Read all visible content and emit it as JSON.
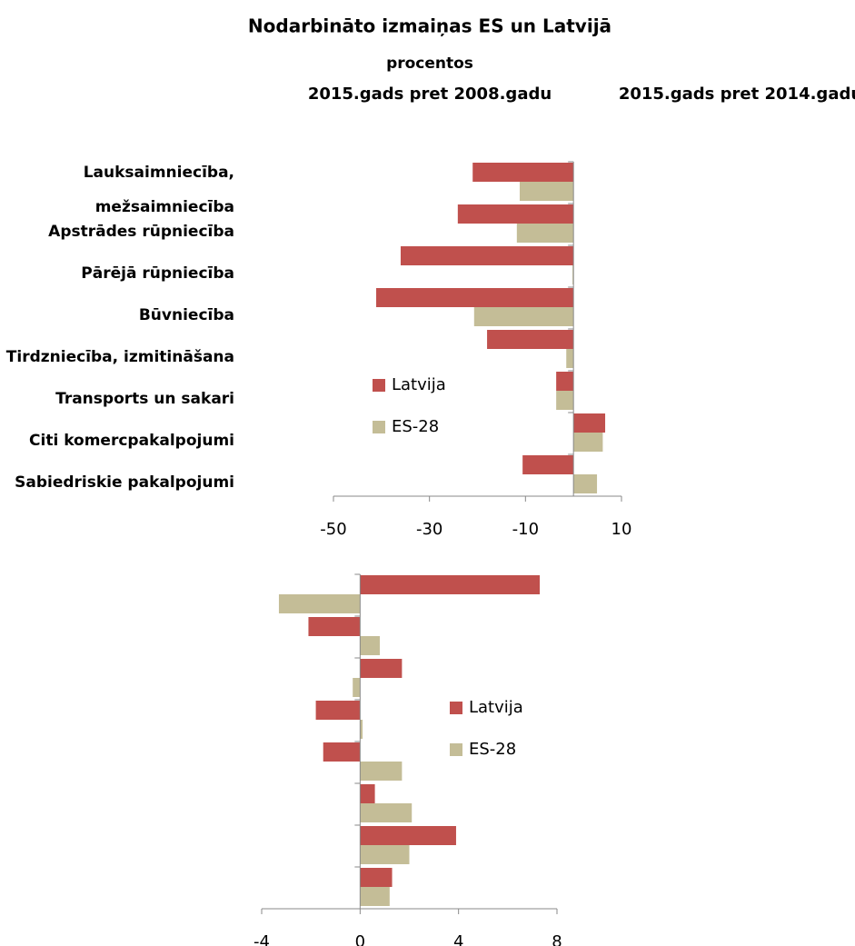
{
  "title": "Nodarbināto izmaiņas ES un Latvijā",
  "subtitle": "procentos",
  "chart_data": [
    {
      "type": "bar",
      "orientation": "horizontal",
      "title": "2015.gads pret 2008.gadu",
      "categories": [
        "Lauksaimniecība, mežsaimniecība",
        "Apstrādes rūpniecība",
        "Pārējā rūpniecība",
        "Būvniecība",
        "Tirdzniecība, izmitināšana",
        "Transports un sakari",
        "Citi komercpakalpojumi",
        "Sabiedriskie pakalpojumi"
      ],
      "series": [
        {
          "name": "Latvija",
          "color": "#c0504d",
          "values": [
            -21.0,
            -24.1,
            -36.0,
            -41.1,
            -18.0,
            -3.6,
            6.6,
            -10.6
          ]
        },
        {
          "name": "ES-28",
          "color": "#c4bd97",
          "values": [
            -11.2,
            -11.8,
            -0.2,
            -20.7,
            -1.5,
            -3.6,
            6.1,
            4.9
          ]
        }
      ],
      "xlim": [
        -50,
        10
      ],
      "xticks": [
        -50,
        -30,
        -10,
        10
      ],
      "legend": "center"
    },
    {
      "type": "bar",
      "orientation": "horizontal",
      "title": "2015.gads pret 2014.gadu",
      "categories": [
        null,
        null,
        null,
        null,
        null,
        null,
        null,
        null
      ],
      "series": [
        {
          "name": "Latvija",
          "color": "#c0504d",
          "values": [
            7.3,
            -2.1,
            1.7,
            -1.8,
            -1.5,
            0.6,
            3.9,
            1.3
          ]
        },
        {
          "name": "ES-28",
          "color": "#c4bd97",
          "values": [
            -3.3,
            0.8,
            -0.3,
            0.1,
            1.7,
            2.1,
            2.0,
            1.2
          ]
        }
      ],
      "xlim": [
        -4,
        8
      ],
      "xticks": [
        -4,
        0,
        4,
        8
      ],
      "legend": "center"
    }
  ]
}
